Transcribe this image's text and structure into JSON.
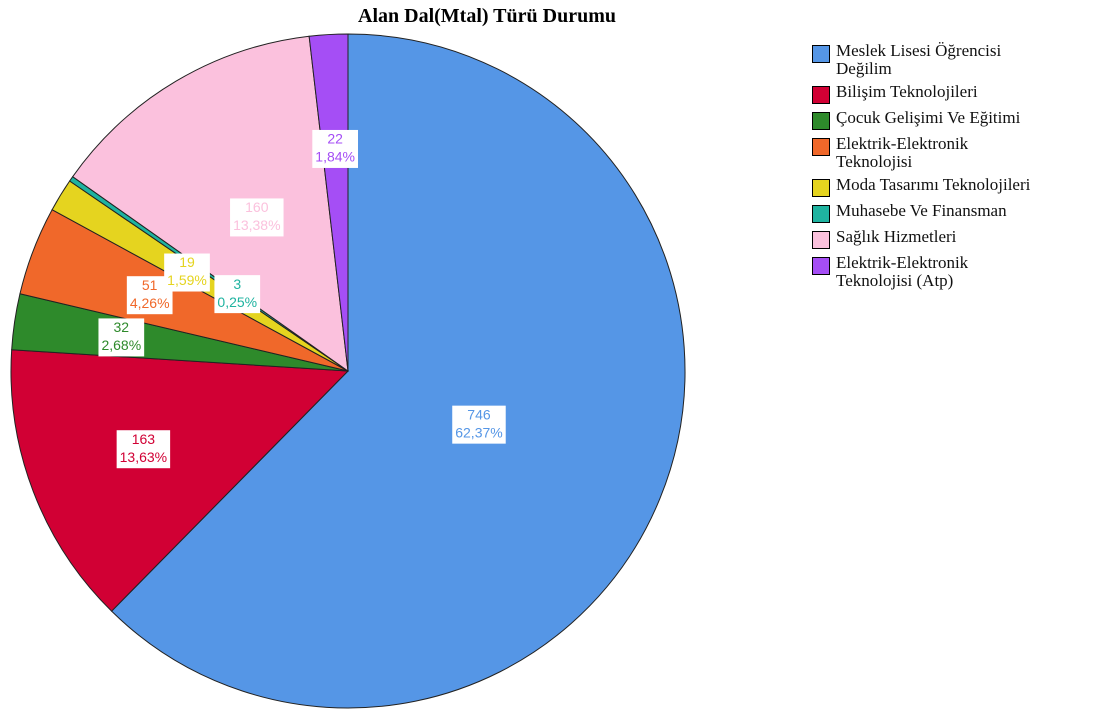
{
  "chart_data": {
    "type": "pie",
    "title": "Alan Dal(Mtal) Türü Durumu",
    "categories": [
      "Meslek Lisesi Öğrencisi\nDeğilim",
      "Bilişim Teknolojileri",
      "Çocuk Gelişimi Ve Eğitimi",
      "Elektrik-Elektronik\nTeknolojisi",
      "Moda Tasarımı Teknolojileri",
      "Muhasebe Ve Finansman",
      "Sağlık Hizmetleri",
      "Elektrik-Elektronik\nTeknolojisi (Atp)"
    ],
    "values": [
      746,
      163,
      32,
      51,
      19,
      3,
      160,
      22
    ],
    "percent_labels": [
      "62,37%",
      "13,63%",
      "2,68%",
      "4,26%",
      "1,59%",
      "0,25%",
      "13,38%",
      "1,84%"
    ],
    "colors": [
      "#5596e6",
      "#d10034",
      "#2e8a2b",
      "#f0682a",
      "#e5d41f",
      "#1fb3a0",
      "#fbc1dd",
      "#a54ef5"
    ],
    "legend": "right"
  }
}
